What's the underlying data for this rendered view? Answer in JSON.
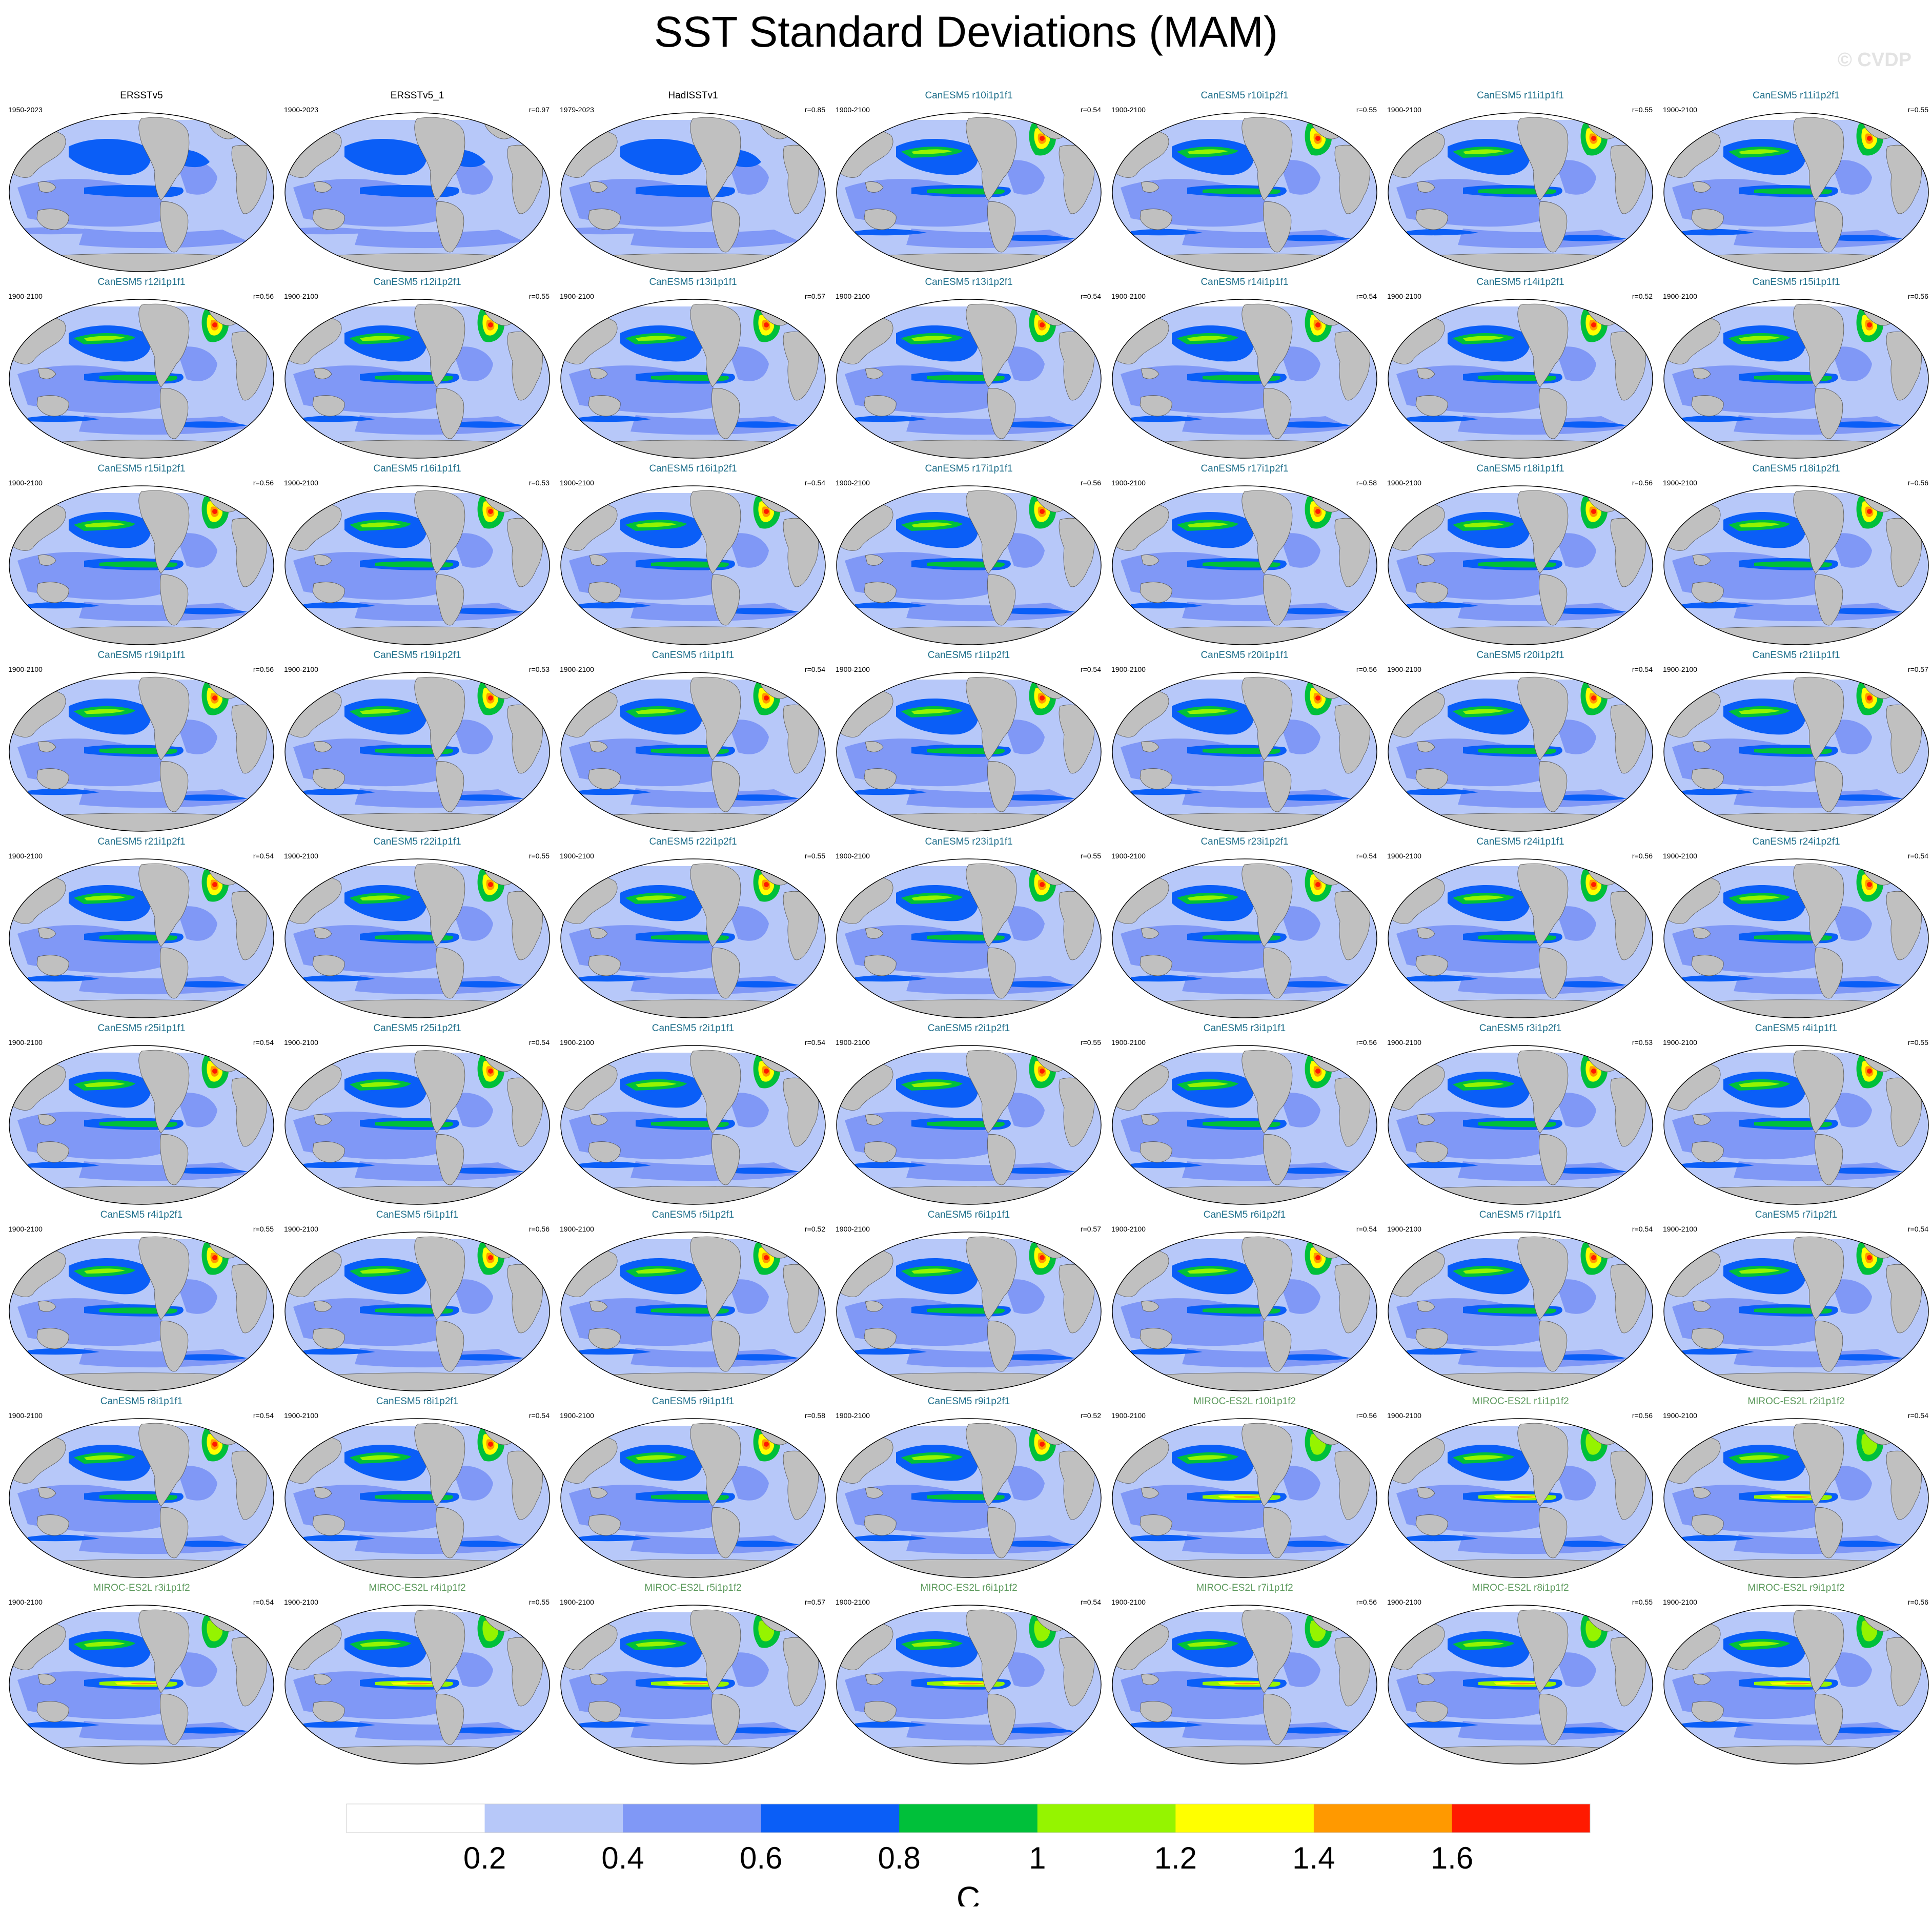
{
  "title": "SST Standard Deviations (MAM)",
  "watermark": "© CVDP",
  "colorbar": {
    "unit": "C",
    "tick_labels": [
      "0.2",
      "0.4",
      "0.6",
      "0.8",
      "1",
      "1.2",
      "1.4",
      "1.6"
    ],
    "colors": [
      "#ffffff",
      "#b7c8f9",
      "#8098f6",
      "#0a5ef7",
      "#00c03a",
      "#95f400",
      "#ffff00",
      "#ff9900",
      "#ff1a00"
    ]
  },
  "map_colors": {
    "ocean_low": "#b7c8f9",
    "ocean_mid": "#8098f6",
    "ocean_high": "#0a5ef7",
    "green": "#00c03a",
    "lime": "#95f400",
    "yellow": "#ffff00",
    "orange": "#ff9900",
    "red": "#ff1a00",
    "land": "#c0c0c0",
    "white": "#ffffff"
  },
  "panels": [
    {
      "title": "ERSSTv5",
      "period": "1950-2023",
      "corr": "",
      "group": "obs"
    },
    {
      "title": "ERSSTv5_1",
      "period": "1900-2023",
      "corr": "r=0.97",
      "group": "obs"
    },
    {
      "title": "HadISSTv1",
      "period": "1979-2023",
      "corr": "r=0.85",
      "group": "obs"
    },
    {
      "title": "CanESM5 r10i1p1f1",
      "period": "1900-2100",
      "corr": "r=0.54",
      "group": "can"
    },
    {
      "title": "CanESM5 r10i1p2f1",
      "period": "1900-2100",
      "corr": "r=0.55",
      "group": "can"
    },
    {
      "title": "CanESM5 r11i1p1f1",
      "period": "1900-2100",
      "corr": "r=0.55",
      "group": "can"
    },
    {
      "title": "CanESM5 r11i1p2f1",
      "period": "1900-2100",
      "corr": "r=0.55",
      "group": "can"
    },
    {
      "title": "CanESM5 r12i1p1f1",
      "period": "1900-2100",
      "corr": "r=0.56",
      "group": "can"
    },
    {
      "title": "CanESM5 r12i1p2f1",
      "period": "1900-2100",
      "corr": "r=0.55",
      "group": "can"
    },
    {
      "title": "CanESM5 r13i1p1f1",
      "period": "1900-2100",
      "corr": "r=0.57",
      "group": "can"
    },
    {
      "title": "CanESM5 r13i1p2f1",
      "period": "1900-2100",
      "corr": "r=0.54",
      "group": "can"
    },
    {
      "title": "CanESM5 r14i1p1f1",
      "period": "1900-2100",
      "corr": "r=0.54",
      "group": "can"
    },
    {
      "title": "CanESM5 r14i1p2f1",
      "period": "1900-2100",
      "corr": "r=0.52",
      "group": "can"
    },
    {
      "title": "CanESM5 r15i1p1f1",
      "period": "1900-2100",
      "corr": "r=0.56",
      "group": "can"
    },
    {
      "title": "CanESM5 r15i1p2f1",
      "period": "1900-2100",
      "corr": "r=0.56",
      "group": "can"
    },
    {
      "title": "CanESM5 r16i1p1f1",
      "period": "1900-2100",
      "corr": "r=0.53",
      "group": "can"
    },
    {
      "title": "CanESM5 r16i1p2f1",
      "period": "1900-2100",
      "corr": "r=0.54",
      "group": "can"
    },
    {
      "title": "CanESM5 r17i1p1f1",
      "period": "1900-2100",
      "corr": "r=0.56",
      "group": "can"
    },
    {
      "title": "CanESM5 r17i1p2f1",
      "period": "1900-2100",
      "corr": "r=0.58",
      "group": "can"
    },
    {
      "title": "CanESM5 r18i1p1f1",
      "period": "1900-2100",
      "corr": "r=0.56",
      "group": "can"
    },
    {
      "title": "CanESM5 r18i1p2f1",
      "period": "1900-2100",
      "corr": "r=0.56",
      "group": "can"
    },
    {
      "title": "CanESM5 r19i1p1f1",
      "period": "1900-2100",
      "corr": "r=0.56",
      "group": "can"
    },
    {
      "title": "CanESM5 r19i1p2f1",
      "period": "1900-2100",
      "corr": "r=0.53",
      "group": "can"
    },
    {
      "title": "CanESM5 r1i1p1f1",
      "period": "1900-2100",
      "corr": "r=0.54",
      "group": "can"
    },
    {
      "title": "CanESM5 r1i1p2f1",
      "period": "1900-2100",
      "corr": "r=0.54",
      "group": "can"
    },
    {
      "title": "CanESM5 r20i1p1f1",
      "period": "1900-2100",
      "corr": "r=0.56",
      "group": "can"
    },
    {
      "title": "CanESM5 r20i1p2f1",
      "period": "1900-2100",
      "corr": "r=0.54",
      "group": "can"
    },
    {
      "title": "CanESM5 r21i1p1f1",
      "period": "1900-2100",
      "corr": "r=0.57",
      "group": "can"
    },
    {
      "title": "CanESM5 r21i1p2f1",
      "period": "1900-2100",
      "corr": "r=0.54",
      "group": "can"
    },
    {
      "title": "CanESM5 r22i1p1f1",
      "period": "1900-2100",
      "corr": "r=0.55",
      "group": "can"
    },
    {
      "title": "CanESM5 r22i1p2f1",
      "period": "1900-2100",
      "corr": "r=0.55",
      "group": "can"
    },
    {
      "title": "CanESM5 r23i1p1f1",
      "period": "1900-2100",
      "corr": "r=0.55",
      "group": "can"
    },
    {
      "title": "CanESM5 r23i1p2f1",
      "period": "1900-2100",
      "corr": "r=0.54",
      "group": "can"
    },
    {
      "title": "CanESM5 r24i1p1f1",
      "period": "1900-2100",
      "corr": "r=0.56",
      "group": "can"
    },
    {
      "title": "CanESM5 r24i1p2f1",
      "period": "1900-2100",
      "corr": "r=0.54",
      "group": "can"
    },
    {
      "title": "CanESM5 r25i1p1f1",
      "period": "1900-2100",
      "corr": "r=0.54",
      "group": "can"
    },
    {
      "title": "CanESM5 r25i1p2f1",
      "period": "1900-2100",
      "corr": "r=0.54",
      "group": "can"
    },
    {
      "title": "CanESM5 r2i1p1f1",
      "period": "1900-2100",
      "corr": "r=0.54",
      "group": "can"
    },
    {
      "title": "CanESM5 r2i1p2f1",
      "period": "1900-2100",
      "corr": "r=0.55",
      "group": "can"
    },
    {
      "title": "CanESM5 r3i1p1f1",
      "period": "1900-2100",
      "corr": "r=0.56",
      "group": "can"
    },
    {
      "title": "CanESM5 r3i1p2f1",
      "period": "1900-2100",
      "corr": "r=0.53",
      "group": "can"
    },
    {
      "title": "CanESM5 r4i1p1f1",
      "period": "1900-2100",
      "corr": "r=0.55",
      "group": "can"
    },
    {
      "title": "CanESM5 r4i1p2f1",
      "period": "1900-2100",
      "corr": "r=0.55",
      "group": "can"
    },
    {
      "title": "CanESM5 r5i1p1f1",
      "period": "1900-2100",
      "corr": "r=0.56",
      "group": "can"
    },
    {
      "title": "CanESM5 r5i1p2f1",
      "period": "1900-2100",
      "corr": "r=0.52",
      "group": "can"
    },
    {
      "title": "CanESM5 r6i1p1f1",
      "period": "1900-2100",
      "corr": "r=0.57",
      "group": "can"
    },
    {
      "title": "CanESM5 r6i1p2f1",
      "period": "1900-2100",
      "corr": "r=0.54",
      "group": "can"
    },
    {
      "title": "CanESM5 r7i1p1f1",
      "period": "1900-2100",
      "corr": "r=0.54",
      "group": "can"
    },
    {
      "title": "CanESM5 r7i1p2f1",
      "period": "1900-2100",
      "corr": "r=0.54",
      "group": "can"
    },
    {
      "title": "CanESM5 r8i1p1f1",
      "period": "1900-2100",
      "corr": "r=0.54",
      "group": "can"
    },
    {
      "title": "CanESM5 r8i1p2f1",
      "period": "1900-2100",
      "corr": "r=0.54",
      "group": "can"
    },
    {
      "title": "CanESM5 r9i1p1f1",
      "period": "1900-2100",
      "corr": "r=0.58",
      "group": "can"
    },
    {
      "title": "CanESM5 r9i1p2f1",
      "period": "1900-2100",
      "corr": "r=0.52",
      "group": "can"
    },
    {
      "title": "MIROC-ES2L r10i1p1f2",
      "period": "1900-2100",
      "corr": "r=0.56",
      "group": "miroc"
    },
    {
      "title": "MIROC-ES2L r1i1p1f2",
      "period": "1900-2100",
      "corr": "r=0.56",
      "group": "miroc"
    },
    {
      "title": "MIROC-ES2L r2i1p1f2",
      "period": "1900-2100",
      "corr": "r=0.54",
      "group": "miroc"
    },
    {
      "title": "MIROC-ES2L r3i1p1f2",
      "period": "1900-2100",
      "corr": "r=0.54",
      "group": "miroc"
    },
    {
      "title": "MIROC-ES2L r4i1p1f2",
      "period": "1900-2100",
      "corr": "r=0.55",
      "group": "miroc"
    },
    {
      "title": "MIROC-ES2L r5i1p1f2",
      "period": "1900-2100",
      "corr": "r=0.57",
      "group": "miroc"
    },
    {
      "title": "MIROC-ES2L r6i1p1f2",
      "period": "1900-2100",
      "corr": "r=0.54",
      "group": "miroc"
    },
    {
      "title": "MIROC-ES2L r7i1p1f2",
      "period": "1900-2100",
      "corr": "r=0.56",
      "group": "miroc"
    },
    {
      "title": "MIROC-ES2L r8i1p1f2",
      "period": "1900-2100",
      "corr": "r=0.55",
      "group": "miroc"
    },
    {
      "title": "MIROC-ES2L r9i1p1f2",
      "period": "1900-2100",
      "corr": "r=0.56",
      "group": "miroc"
    }
  ]
}
